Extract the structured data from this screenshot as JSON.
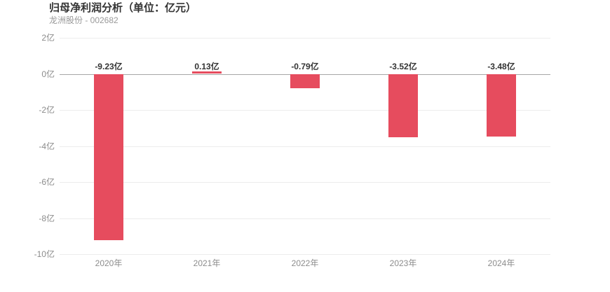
{
  "header": {
    "title": "归母净利润分析（单位：亿元）",
    "subtitle": "龙洲股份 - 002682"
  },
  "chart_data": {
    "type": "bar",
    "title": "归母净利润分析（单位：亿元）",
    "subtitle": "龙洲股份 - 002682",
    "categories": [
      "2020年",
      "2021年",
      "2022年",
      "2023年",
      "2024年"
    ],
    "values": [
      -9.23,
      0.13,
      -0.79,
      -3.52,
      -3.48
    ],
    "value_labels": [
      "-9.23亿",
      "0.13亿",
      "-0.79亿",
      "-3.52亿",
      "-3.48亿"
    ],
    "unit": "亿",
    "xlabel": "",
    "ylabel": "",
    "ylim": [
      -10,
      2
    ],
    "y_ticks": [
      {
        "value": 2,
        "label": "2亿"
      },
      {
        "value": 0,
        "label": "0亿"
      },
      {
        "value": -2,
        "label": "-2亿"
      },
      {
        "value": -4,
        "label": "-4亿"
      },
      {
        "value": -6,
        "label": "-6亿"
      },
      {
        "value": -8,
        "label": "-8亿"
      },
      {
        "value": -10,
        "label": "-10亿"
      }
    ],
    "grid": true,
    "legend": "none",
    "bar_color": "#e64c5e"
  },
  "colors": {
    "bar": "#e64c5e",
    "title_text": "#333333",
    "subtitle_text": "#999999",
    "axis_text": "#8c8c8c",
    "value_label_text": "#333333",
    "gridline": "#ececec",
    "zero_line": "#a6a6a6",
    "background": "#ffffff"
  }
}
